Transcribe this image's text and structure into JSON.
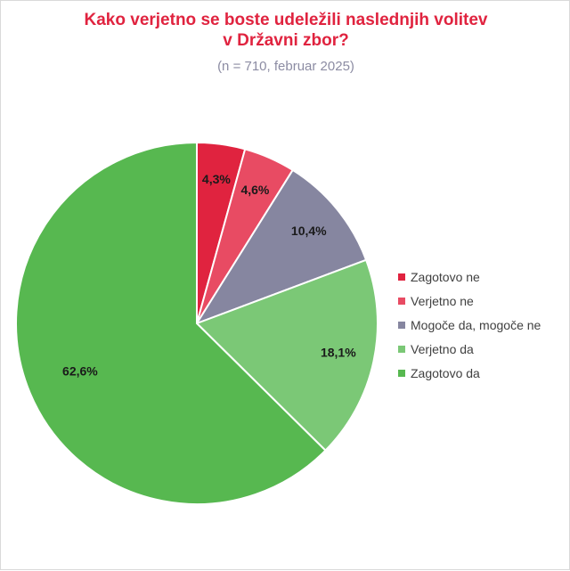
{
  "chart_data": {
    "type": "pie",
    "title_lines": [
      "Kako verjetno se boste udeležili naslednjih volitev",
      "v Državni zbor?"
    ],
    "subtitle": "(n = 710, februar 2025)",
    "categories": [
      "Zagotovo ne",
      "Verjetno ne",
      "Mogoče da, mogoče ne",
      "Verjetno da",
      "Zagotovo da"
    ],
    "values": [
      4.3,
      4.6,
      10.4,
      18.1,
      62.6
    ],
    "data_labels": [
      "4,3%",
      "4,6%",
      "10,4%",
      "18,1%",
      "62,6%"
    ],
    "colors": [
      "#e0233f",
      "#e84b63",
      "#8686a0",
      "#7bc876",
      "#57b850"
    ],
    "start_angle": "12 o'clock, clockwise",
    "legend_position": "right"
  }
}
